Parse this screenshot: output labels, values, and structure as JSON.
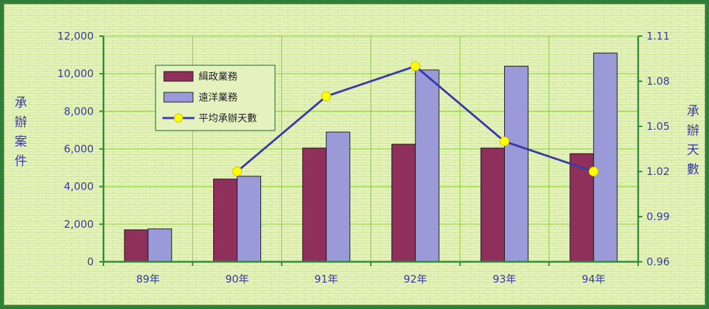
{
  "chart_data": {
    "type": "bar",
    "categories": [
      "89年",
      "90年",
      "91年",
      "92年",
      "93年",
      "94年"
    ],
    "series": [
      {
        "name": "緝政業務",
        "type": "bar",
        "axis": "left",
        "color": "#8e2f5c",
        "values": [
          1700,
          4400,
          6050,
          6250,
          6050,
          5750
        ]
      },
      {
        "name": "遠洋業務",
        "type": "bar",
        "axis": "left",
        "color": "#9a9ad8",
        "values": [
          1750,
          4550,
          6900,
          10200,
          10400,
          11100
        ]
      },
      {
        "name": "平均承辦天數",
        "type": "line",
        "axis": "right",
        "color": "#3a3aa8",
        "marker_color": "#ffff00",
        "values": [
          null,
          1.02,
          1.07,
          1.09,
          1.04,
          1.02
        ]
      }
    ],
    "ylabel": "承辦案件",
    "y2label": "承辦天數",
    "ylim": [
      0,
      12000
    ],
    "y2lim": [
      0.96,
      1.11
    ],
    "yticks": [
      "0",
      "2,000",
      "4,000",
      "6,000",
      "8,000",
      "10,000",
      "12,000"
    ],
    "y2ticks": [
      "0.96",
      "0.99",
      "1.02",
      "1.05",
      "1.08",
      "1.11"
    ],
    "grid": true,
    "legend": "upper-left inside plot"
  }
}
